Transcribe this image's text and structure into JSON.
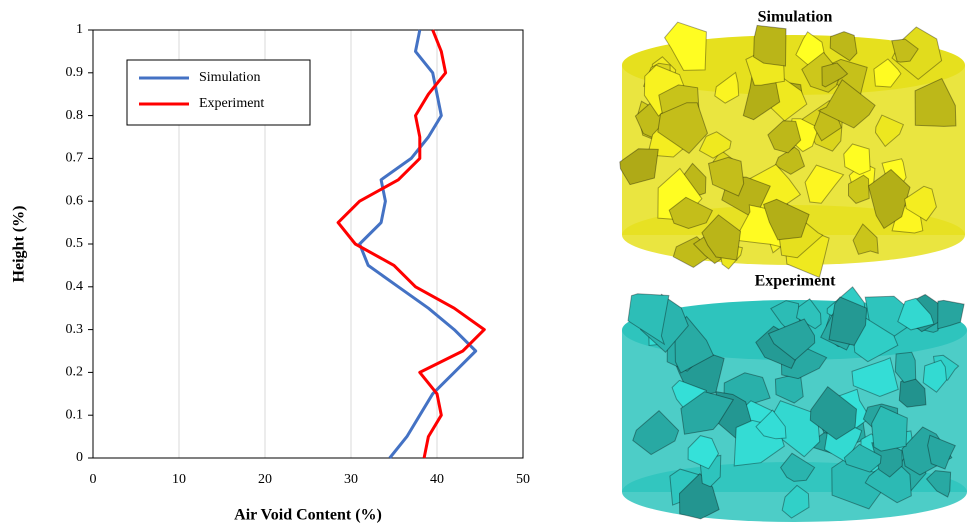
{
  "chart_data": {
    "type": "line",
    "xlabel": "Air Void Content (%)",
    "ylabel": "Height (%)",
    "xlim": [
      0,
      50
    ],
    "xticks": [
      0,
      10,
      20,
      30,
      40,
      50
    ],
    "ylim": [
      0,
      1
    ],
    "yticks": [
      0,
      0.1,
      0.2,
      0.3,
      0.4,
      0.5,
      0.6,
      0.7,
      0.8,
      0.9,
      1
    ],
    "grid": "x",
    "legend": "upper left",
    "series": [
      {
        "name": "Simulation",
        "color": "#4472c4",
        "x": [
          34.5,
          36.5,
          38,
          39.5,
          42,
          44.5,
          42,
          39,
          35.5,
          32,
          31,
          33.5,
          34,
          33.5,
          37,
          39,
          40.5,
          40,
          39.5,
          37.5,
          38
        ],
        "values": [
          0,
          0.05,
          0.1,
          0.15,
          0.2,
          0.25,
          0.3,
          0.35,
          0.4,
          0.45,
          0.5,
          0.55,
          0.6,
          0.65,
          0.7,
          0.75,
          0.8,
          0.85,
          0.9,
          0.95,
          1
        ]
      },
      {
        "name": "Experiment",
        "color": "#ff0000",
        "x": [
          38.5,
          39,
          40.5,
          40,
          38,
          43,
          45.5,
          42,
          37.5,
          35,
          30.5,
          28.5,
          31,
          35.5,
          38,
          38,
          37.5,
          39,
          41,
          40.5,
          39.5
        ],
        "values": [
          0,
          0.05,
          0.1,
          0.15,
          0.2,
          0.25,
          0.3,
          0.35,
          0.4,
          0.45,
          0.5,
          0.55,
          0.6,
          0.65,
          0.7,
          0.75,
          0.8,
          0.85,
          0.9,
          0.95,
          1
        ]
      }
    ]
  },
  "panels": [
    {
      "title": "Simulation",
      "color": "#e6e01e"
    },
    {
      "title": "Experiment",
      "color": "#2ec4bd"
    }
  ]
}
